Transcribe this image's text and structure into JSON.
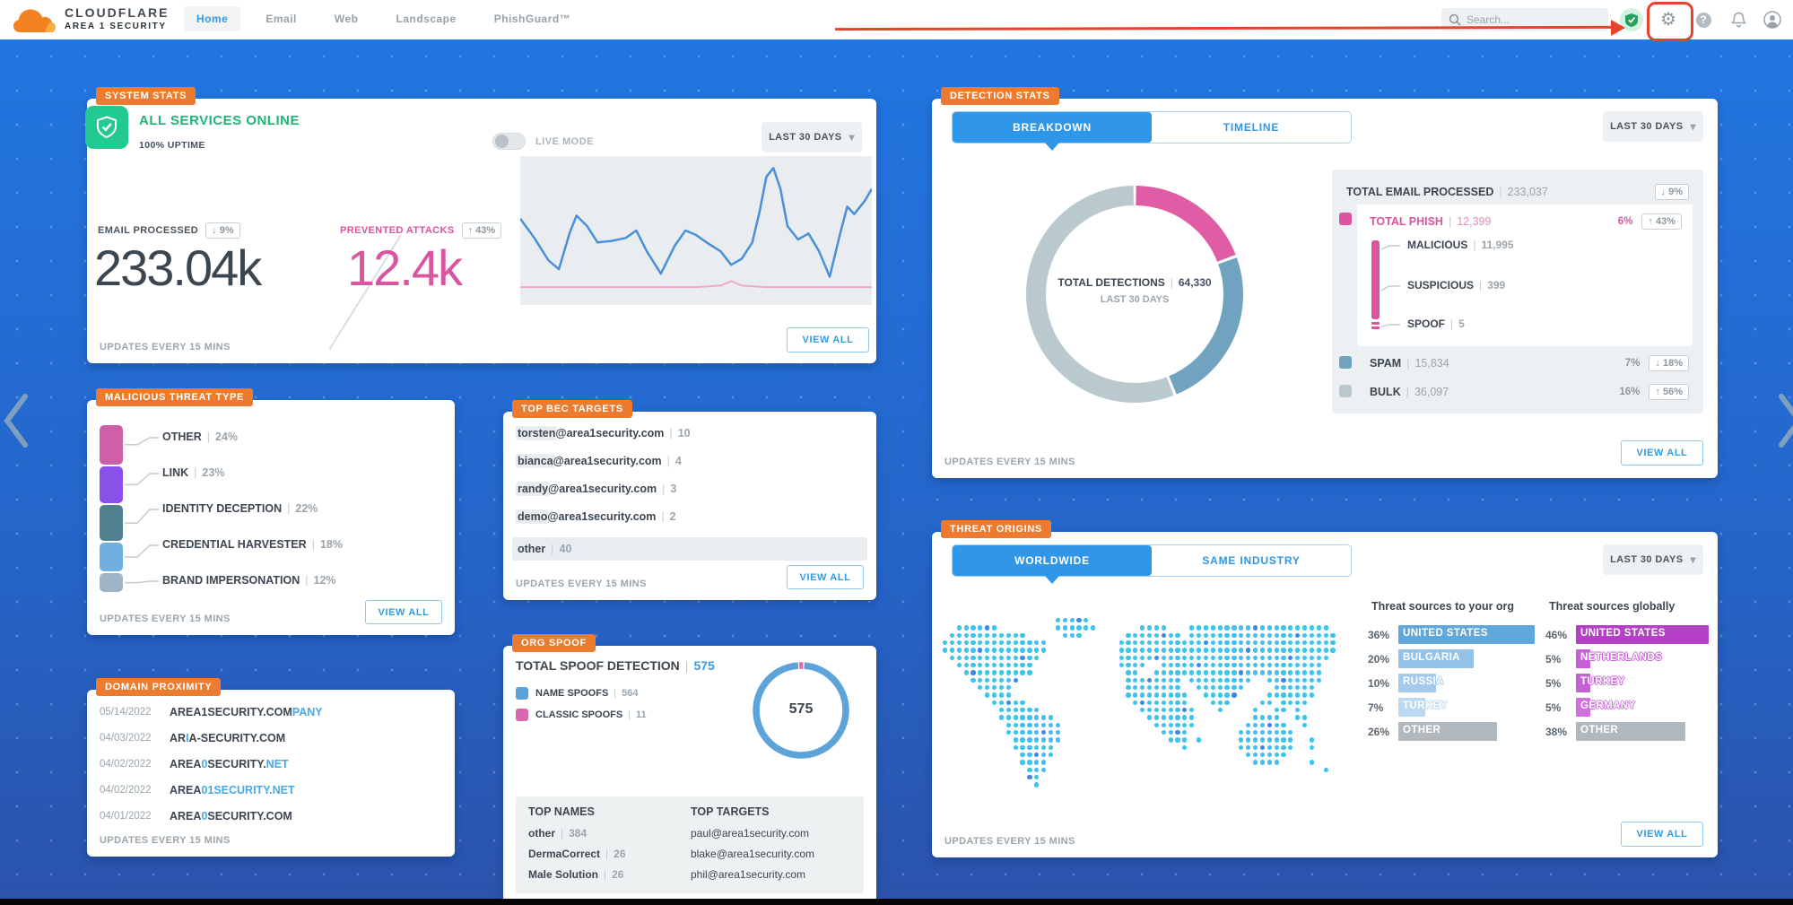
{
  "nav": {
    "brand_line1": "CLOUDFLARE",
    "brand_line2": "AREA 1 SECURITY",
    "items": [
      {
        "label": "Home"
      },
      {
        "label": "Email"
      },
      {
        "label": "Web"
      },
      {
        "label": "Landscape"
      },
      {
        "label": "PhishGuard™"
      }
    ],
    "search_placeholder": "Search..."
  },
  "common": {
    "updates": "UPDATES EVERY 15 MINS",
    "view_all": "VIEW ALL",
    "period": "LAST 30 DAYS"
  },
  "system_stats": {
    "tag": "SYSTEM STATS",
    "status": "ALL SERVICES ONLINE",
    "uptime": "100% UPTIME",
    "live_mode": "LIVE MODE",
    "email_processed": {
      "label": "EMAIL PROCESSED",
      "delta": "↓ 9%",
      "value": "233.04k"
    },
    "prevented_attacks": {
      "label": "PREVENTED ATTACKS",
      "delta": "↑ 43%",
      "value": "12.4k"
    },
    "sparkline": {
      "blue": [
        [
          0,
          42
        ],
        [
          4,
          55
        ],
        [
          8,
          70
        ],
        [
          11,
          76
        ],
        [
          14,
          52
        ],
        [
          16,
          40
        ],
        [
          19,
          47
        ],
        [
          22,
          58
        ],
        [
          26,
          57
        ],
        [
          30,
          55
        ],
        [
          33,
          50
        ],
        [
          36,
          64
        ],
        [
          40,
          79
        ],
        [
          44,
          60
        ],
        [
          47,
          50
        ],
        [
          50,
          53
        ],
        [
          53,
          58
        ],
        [
          57,
          64
        ],
        [
          60,
          73
        ],
        [
          63,
          69
        ],
        [
          66,
          58
        ],
        [
          68,
          38
        ],
        [
          70,
          14
        ],
        [
          72,
          8
        ],
        [
          74,
          22
        ],
        [
          76,
          47
        ],
        [
          79,
          56
        ],
        [
          82,
          52
        ],
        [
          85,
          64
        ],
        [
          88,
          81
        ],
        [
          91,
          52
        ],
        [
          93,
          34
        ],
        [
          95,
          39
        ],
        [
          98,
          30
        ],
        [
          100,
          22
        ]
      ],
      "pink": [
        [
          0,
          88
        ],
        [
          25,
          88
        ],
        [
          50,
          88
        ],
        [
          57,
          87
        ],
        [
          60,
          84
        ],
        [
          63,
          87
        ],
        [
          70,
          88
        ],
        [
          100,
          88
        ]
      ]
    }
  },
  "malicious_threat": {
    "tag": "MALICIOUS THREAT TYPE",
    "items": [
      {
        "label": "OTHER",
        "pct": "24%",
        "value": 24,
        "color": "#cf5fa6"
      },
      {
        "label": "LINK",
        "pct": "23%",
        "value": 23,
        "color": "#8a52e8"
      },
      {
        "label": "IDENTITY DECEPTION",
        "pct": "22%",
        "value": 22,
        "color": "#4e808f"
      },
      {
        "label": "CREDENTIAL HARVESTER",
        "pct": "18%",
        "value": 18,
        "color": "#6fb0e0"
      },
      {
        "label": "BRAND IMPERSONATION",
        "pct": "12%",
        "value": 12,
        "color": "#9fb4c4"
      }
    ]
  },
  "domain_proximity": {
    "tag": "DOMAIN PROXIMITY",
    "rows": [
      {
        "date": "05/14/2022",
        "seg1": "AREA1SECURITY.COM",
        "seg2": "PANY",
        "seg3": "",
        "seg4": ""
      },
      {
        "date": "04/03/2022",
        "seg1": "AR",
        "seg2": "I",
        "seg3": "A-SECURITY.COM",
        "seg4": ""
      },
      {
        "date": "04/02/2022",
        "seg1": "AREA",
        "seg2": "0",
        "seg3": "SECURITY.",
        "seg4": "NET"
      },
      {
        "date": "04/02/2022",
        "seg1": "AREA",
        "seg2": "01SECURITY.NET",
        "seg3": "",
        "seg4": ""
      },
      {
        "date": "04/01/2022",
        "seg1": "AREA",
        "seg2": "0",
        "seg3": "SECURITY.COM",
        "seg4": ""
      }
    ]
  },
  "top_bec": {
    "tag": "TOP BEC TARGETS",
    "rows": [
      {
        "user": "torsten",
        "rest": "@area1security.com",
        "count": "10"
      },
      {
        "user": "bianca",
        "rest": "@area1security.com",
        "count": "4"
      },
      {
        "user": "randy",
        "rest": "@area1security.com",
        "count": "3"
      },
      {
        "user": "demo",
        "rest": "@area1security.com",
        "count": "2"
      }
    ],
    "other_row": {
      "label": "other",
      "count": "40"
    }
  },
  "org_spoof": {
    "tag": "ORG SPOOF",
    "title": "TOTAL SPOOF DETECTION",
    "total": "575",
    "legend": [
      {
        "label": "NAME SPOOFS",
        "value": "564",
        "color": "#5ba3d9"
      },
      {
        "label": "CLASSIC SPOOFS",
        "value": "11",
        "color": "#d966ae"
      }
    ],
    "donut_center": "575",
    "top_names_title": "TOP NAMES",
    "top_targets_title": "TOP TARGETS",
    "top_names": [
      {
        "name": "other",
        "count": "384"
      },
      {
        "name": "DermaCorrect",
        "count": "26"
      },
      {
        "name": "Male Solution",
        "count": "26"
      }
    ],
    "top_targets": [
      "paul@area1security.com",
      "blake@area1security.com",
      "phil@area1security.com"
    ]
  },
  "detection_stats": {
    "tag": "DETECTION STATS",
    "tabs": [
      "BREAKDOWN",
      "TIMELINE"
    ],
    "donut": {
      "center_label": "TOTAL DETECTIONS",
      "center_value": "64,330",
      "center_sub": "LAST 30 DAYS",
      "segments": [
        {
          "name": "phish",
          "value": 12399,
          "color": "#e05da5"
        },
        {
          "name": "spam",
          "value": 15834,
          "color": "#6fa3c0"
        },
        {
          "name": "bulk",
          "value": 36097,
          "color": "#bac9ce"
        }
      ]
    },
    "total_email": {
      "label": "TOTAL EMAIL PROCESSED",
      "value": "233,037",
      "delta": "↓ 9%"
    },
    "total_phish": {
      "label": "TOTAL PHISH",
      "value": "12,399",
      "pct": "6%",
      "delta": "↑ 43%",
      "color": "#d9559f",
      "children": [
        {
          "label": "MALICIOUS",
          "value": "11,995"
        },
        {
          "label": "SUSPICIOUS",
          "value": "399"
        },
        {
          "label": "SPOOF",
          "value": "5"
        }
      ]
    },
    "spam": {
      "label": "SPAM",
      "value": "15,834",
      "pct": "7%",
      "delta": "↓ 18%",
      "color": "#6fa3c0"
    },
    "bulk": {
      "label": "BULK",
      "value": "36,097",
      "pct": "16%",
      "delta": "↑ 56%",
      "color": "#bac9ce"
    }
  },
  "threat_origins": {
    "tag": "THREAT ORIGINS",
    "tabs": [
      "WORLDWIDE",
      "SAME INDUSTRY"
    ],
    "org_header": "Threat sources to your org",
    "global_header": "Threat sources globally",
    "org_bars": [
      {
        "pct": "36%",
        "value": 36,
        "label": "UNITED STATES",
        "color": "#62a7dc"
      },
      {
        "pct": "20%",
        "value": 20,
        "label": "BULGARIA",
        "color": "#92c2e8"
      },
      {
        "pct": "10%",
        "value": 10,
        "label": "RUSSIA",
        "color": "#a4cbed"
      },
      {
        "pct": "7%",
        "value": 7,
        "label": "TURKEY",
        "color": "#bad9f3"
      },
      {
        "pct": "26%",
        "value": 26,
        "label": "OTHER",
        "color": "#b1b8be"
      }
    ],
    "global_bars": [
      {
        "pct": "46%",
        "value": 46,
        "label": "UNITED STATES",
        "color": "#b440c6"
      },
      {
        "pct": "5%",
        "value": 5,
        "label": "NETHERLANDS",
        "color": "#c760d6"
      },
      {
        "pct": "5%",
        "value": 5,
        "label": "TURKEY",
        "color": "#c760d6"
      },
      {
        "pct": "5%",
        "value": 5,
        "label": "GERMANY",
        "color": "#cf70de"
      },
      {
        "pct": "38%",
        "value": 38,
        "label": "OTHER",
        "color": "#b1b8be"
      }
    ]
  },
  "chart_data": [
    {
      "type": "pie",
      "title": "TOTAL DETECTIONS | 64,330 (LAST 30 DAYS)",
      "labels": [
        "TOTAL PHISH",
        "SPAM",
        "BULK"
      ],
      "values": [
        12399,
        15834,
        36097
      ]
    },
    {
      "type": "pie",
      "title": "TOTAL SPOOF DETECTION | 575",
      "labels": [
        "NAME SPOOFS",
        "CLASSIC SPOOFS"
      ],
      "values": [
        564,
        11
      ]
    },
    {
      "type": "bar",
      "title": "MALICIOUS THREAT TYPE",
      "categories": [
        "OTHER",
        "LINK",
        "IDENTITY DECEPTION",
        "CREDENTIAL HARVESTER",
        "BRAND IMPERSONATION"
      ],
      "values": [
        24,
        23,
        22,
        18,
        12
      ],
      "unit": "%"
    },
    {
      "type": "bar",
      "title": "Threat sources to your org",
      "categories": [
        "UNITED STATES",
        "BULGARIA",
        "RUSSIA",
        "TURKEY",
        "OTHER"
      ],
      "values": [
        36,
        20,
        10,
        7,
        26
      ],
      "unit": "%"
    },
    {
      "type": "bar",
      "title": "Threat sources globally",
      "categories": [
        "UNITED STATES",
        "NETHERLANDS",
        "TURKEY",
        "GERMANY",
        "OTHER"
      ],
      "values": [
        46,
        5,
        5,
        5,
        38
      ],
      "unit": "%"
    },
    {
      "type": "line",
      "title": "EMAIL PROCESSED vs PREVENTED ATTACKS sparkline",
      "series": [
        {
          "name": "EMAIL PROCESSED",
          "value": "233.04k"
        },
        {
          "name": "PREVENTED ATTACKS",
          "value": "12.4k"
        }
      ]
    }
  ]
}
